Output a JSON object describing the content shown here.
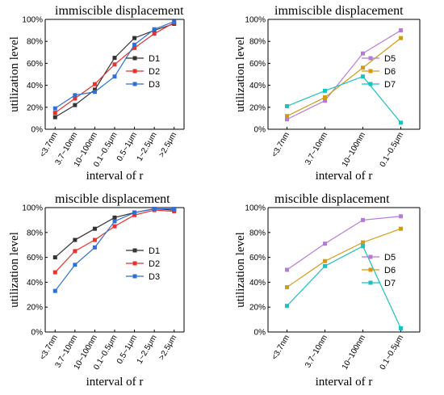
{
  "chart_data": [
    {
      "type": "line",
      "title": "immiscible displacement",
      "xlabel": "interval of r",
      "ylabel": "utilization level",
      "categories": [
        "<3.7nm",
        "3.7~10nm",
        "10~100nm",
        "0.1~0.5μm",
        "0.5~1μm",
        "1~2.5μm",
        ">2.5μm"
      ],
      "ylim": [
        0,
        100
      ],
      "yticks": [
        "0%",
        "20%",
        "40%",
        "60%",
        "80%",
        "100%"
      ],
      "legend_position": "middle-right",
      "series": [
        {
          "name": "D1",
          "color": "#333333",
          "values": [
            11,
            22,
            36,
            65,
            83,
            90,
            96
          ]
        },
        {
          "name": "D2",
          "color": "#e8322e",
          "values": [
            15,
            28,
            41,
            59,
            74,
            87,
            97
          ]
        },
        {
          "name": "D3",
          "color": "#2f6fd6",
          "values": [
            19,
            31,
            34,
            48,
            77,
            91,
            98
          ]
        }
      ]
    },
    {
      "type": "line",
      "title": "immiscible displacement",
      "xlabel": "interval of r",
      "ylabel": "utilization level",
      "categories": [
        "<3.7nm",
        "3.7~10nm",
        "10~100nm",
        "0.1~0.5μm"
      ],
      "ylim": [
        0,
        100
      ],
      "yticks": [
        "0%",
        "20%",
        "40%",
        "60%",
        "80%",
        "100%"
      ],
      "legend_position": "middle-right",
      "series": [
        {
          "name": "D5",
          "color": "#b57bd6",
          "values": [
            9,
            26,
            69,
            90
          ]
        },
        {
          "name": "D6",
          "color": "#d49a12",
          "values": [
            12,
            29,
            56,
            83
          ]
        },
        {
          "name": "D7",
          "color": "#1cc1c1",
          "values": [
            21,
            35,
            48,
            6
          ]
        }
      ]
    },
    {
      "type": "line",
      "title": "miscible displacement",
      "xlabel": "interval of r",
      "ylabel": "utilization level",
      "categories": [
        "<3.7nm",
        "3.7~10nm",
        "10~100nm",
        "0.1~0.5μm",
        "0.5~1μm",
        "1~2.5μm",
        ">2.5μm"
      ],
      "ylim": [
        0,
        100
      ],
      "yticks": [
        "0%",
        "20%",
        "40%",
        "60%",
        "80%",
        "100%"
      ],
      "legend_position": "middle-right",
      "series": [
        {
          "name": "D1",
          "color": "#333333",
          "values": [
            60,
            74,
            83,
            92,
            96,
            99,
            98
          ]
        },
        {
          "name": "D2",
          "color": "#e8322e",
          "values": [
            48,
            65,
            74,
            85,
            94,
            98,
            97
          ]
        },
        {
          "name": "D3",
          "color": "#2f6fd6",
          "values": [
            33,
            54,
            68,
            89,
            96,
            99,
            99
          ]
        }
      ]
    },
    {
      "type": "line",
      "title": "miscible displacement",
      "xlabel": "interval of r",
      "ylabel": "utilization level",
      "categories": [
        "<3.7nm",
        "3.7~10nm",
        "10~100nm",
        "0.1~0.5μm"
      ],
      "ylim": [
        0,
        100
      ],
      "yticks": [
        "0%",
        "20%",
        "40%",
        "60%",
        "80%",
        "100%"
      ],
      "legend_position": "middle-right",
      "series": [
        {
          "name": "D5",
          "color": "#b57bd6",
          "values": [
            50,
            71,
            90,
            93
          ]
        },
        {
          "name": "D6",
          "color": "#d49a12",
          "values": [
            36,
            57,
            72,
            83
          ]
        },
        {
          "name": "D7",
          "color": "#1cc1c1",
          "values": [
            21,
            53,
            69,
            3
          ]
        }
      ]
    }
  ]
}
